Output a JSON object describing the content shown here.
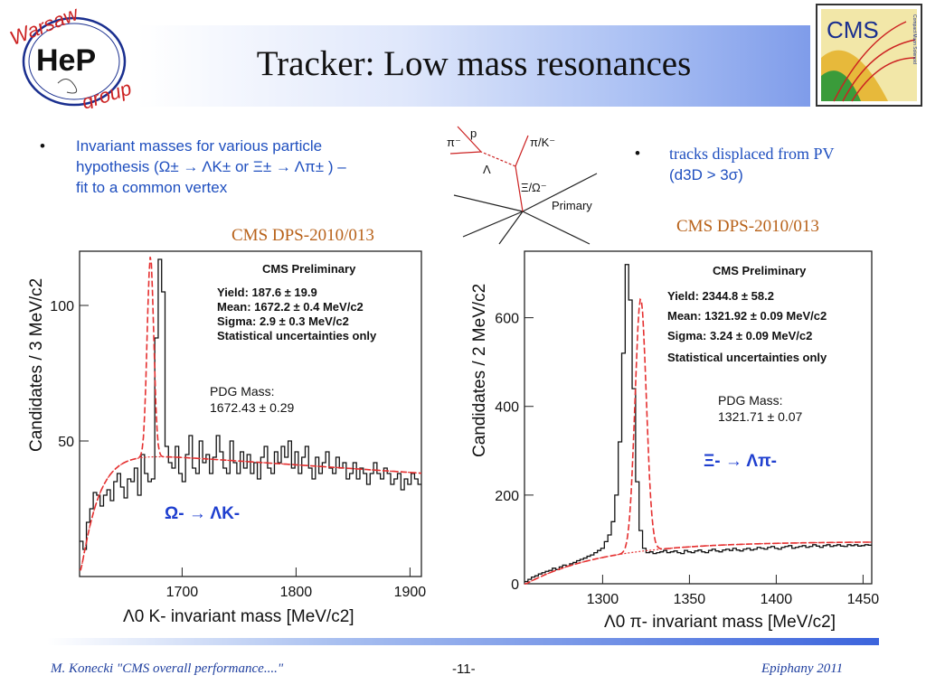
{
  "header": {
    "title": "Tracker: Low mass resonances",
    "logo_left": {
      "top": "Warsaw",
      "middle": "HeP",
      "bottom": "group"
    },
    "logo_right": {
      "text": "CMS",
      "subtext": "Compact Muon Solenoid"
    }
  },
  "bullets": {
    "left": {
      "line1": "Invariant masses for various particle",
      "line2": "hypothesis (Ω± → ΛK± or Ξ± → Λπ± ) –",
      "line3": "fit to a common vertex"
    },
    "right": {
      "line1": "tracks displaced from PV",
      "line2": "(d3D > 3σ)"
    }
  },
  "refs": {
    "left": "CMS DPS-2010/013",
    "right": "CMS DPS-2010/013"
  },
  "diagram": {
    "labels": {
      "p": "p",
      "pi": "π⁻",
      "piK": "π/K⁻",
      "lambda": "Λ",
      "xi": "Ξ/Ω⁻",
      "primary": "Primary"
    }
  },
  "chart_data": [
    {
      "type": "histogram",
      "xlabel": "Λ0 K- invariant mass [MeV/c2]",
      "ylabel": "Candidates / 3 MeV/c2",
      "xlim": [
        1610,
        1910
      ],
      "ylim": [
        0,
        120
      ],
      "xticks": [
        1700,
        1800,
        1900
      ],
      "yticks": [
        50,
        100
      ],
      "box": {
        "title": "CMS Preliminary",
        "lines": [
          "Yield: 187.6 ± 19.9",
          "Mean: 1672.2 ± 0.4 MeV/c2",
          "Sigma: 2.9 ± 0.3 MeV/c2",
          "Statistical uncertainties only"
        ]
      },
      "pdg": {
        "line1": "PDG Mass:",
        "line2": "1672.43 ± 0.29"
      },
      "decay_label": "Ω- → ΛK-",
      "bin_width": 3,
      "x_start": 1610,
      "counts": [
        13,
        10,
        20,
        25,
        31,
        30,
        26,
        30,
        32,
        28,
        35,
        38,
        33,
        29,
        36,
        35,
        40,
        30,
        45,
        38,
        35,
        36,
        88,
        117,
        105,
        48,
        42,
        40,
        48,
        38,
        35,
        45,
        52,
        40,
        38,
        50,
        42,
        45,
        38,
        44,
        52,
        46,
        40,
        38,
        50,
        42,
        38,
        46,
        40,
        45,
        38,
        42,
        36,
        44,
        48,
        40,
        38,
        46,
        42,
        48,
        44,
        50,
        40,
        46,
        38,
        44,
        48,
        40,
        36,
        44,
        38,
        42,
        46,
        40,
        38,
        44,
        40,
        42,
        36,
        38,
        42,
        36,
        40,
        38,
        34,
        38,
        42,
        38,
        36,
        40,
        38,
        34,
        36,
        38,
        32,
        36,
        34,
        38,
        36,
        34
      ]
    },
    {
      "type": "histogram",
      "xlabel": "Λ0 π- invariant mass [MeV/c2]",
      "ylabel": "Candidates / 2 MeV/c2",
      "xlim": [
        1255,
        1455
      ],
      "ylim": [
        0,
        750
      ],
      "xticks": [
        1300,
        1350,
        1400,
        1450
      ],
      "yticks": [
        0,
        200,
        400,
        600
      ],
      "box": {
        "title": "CMS Preliminary",
        "lines": [
          "Yield: 2344.8 ± 58.2",
          "Mean: 1321.92 ± 0.09 MeV/c2",
          "Sigma: 3.24 ± 0.09 MeV/c2",
          "Statistical uncertainties only"
        ]
      },
      "pdg": {
        "line1": "PDG Mass:",
        "line2": "1321.71 ± 0.07"
      },
      "decay_label": "Ξ- → Λπ-",
      "bin_width": 2,
      "x_start": 1255,
      "counts": [
        5,
        10,
        15,
        18,
        22,
        25,
        28,
        30,
        35,
        32,
        38,
        42,
        40,
        45,
        48,
        52,
        55,
        58,
        62,
        65,
        70,
        75,
        80,
        95,
        110,
        140,
        200,
        320,
        520,
        720,
        640,
        440,
        230,
        120,
        80,
        70,
        72,
        68,
        70,
        72,
        75,
        70,
        72,
        74,
        70,
        68,
        75,
        72,
        70,
        74,
        76,
        72,
        70,
        75,
        78,
        74,
        72,
        76,
        78,
        75,
        80,
        76,
        74,
        78,
        80,
        76,
        78,
        82,
        80,
        78,
        82,
        84,
        80,
        78,
        82,
        84,
        86,
        80,
        82,
        84,
        86,
        82,
        84,
        88,
        85,
        82,
        86,
        88,
        84,
        86,
        88,
        85,
        84,
        88,
        86,
        88,
        85,
        86,
        88,
        87
      ]
    }
  ],
  "footer": {
    "author": "M. Konecki   \"CMS overall performance....\"",
    "page": "-11-",
    "event": "Epiphany 2011"
  }
}
